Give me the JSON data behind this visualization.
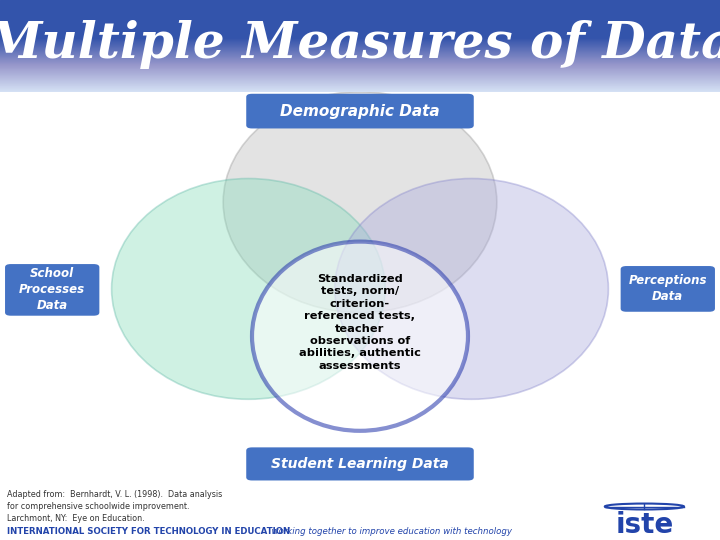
{
  "title": "Multiple Measures of Data",
  "title_color": "#FFFFFF",
  "background_color": "#FFFFFF",
  "box_bg": "#4472C4",
  "box_text_color": "#FFFFFF",
  "label_demographic": "Demographic Data",
  "label_school": "School\nProcesses\nData",
  "label_perceptions": "Perceptions\nData",
  "label_student": "Student Learning Data",
  "center_text": "Standardized\ntests, norm/\ncriterion-\nreferenced tests,\nteacher\nobservations of\nabilities, authentic\nassessments",
  "footer_attribution": "Adapted from:  Bernhardt, V. L. (1998).  Data analysis\nfor comprehensive schoolwide improvement.\nLarchmont, NY:  Eye on Education.",
  "footer_iste_bold": "INTERNATIONAL SOCIETY FOR TECHNOLOGY IN EDUCATION",
  "footer_iste_normal": "  working together to improve education with technology",
  "color_demographic": "#BBBBBB",
  "color_school": "#88DDBB",
  "color_perceptions": "#AAAADD",
  "color_student_border": "#2233AA",
  "alpha_circles": 0.4,
  "title_gradient_colors": [
    "#3355AA",
    "#4477CC",
    "#6699DD",
    "#99BBEE",
    "#CCDDF5",
    "#E8F0FA"
  ]
}
